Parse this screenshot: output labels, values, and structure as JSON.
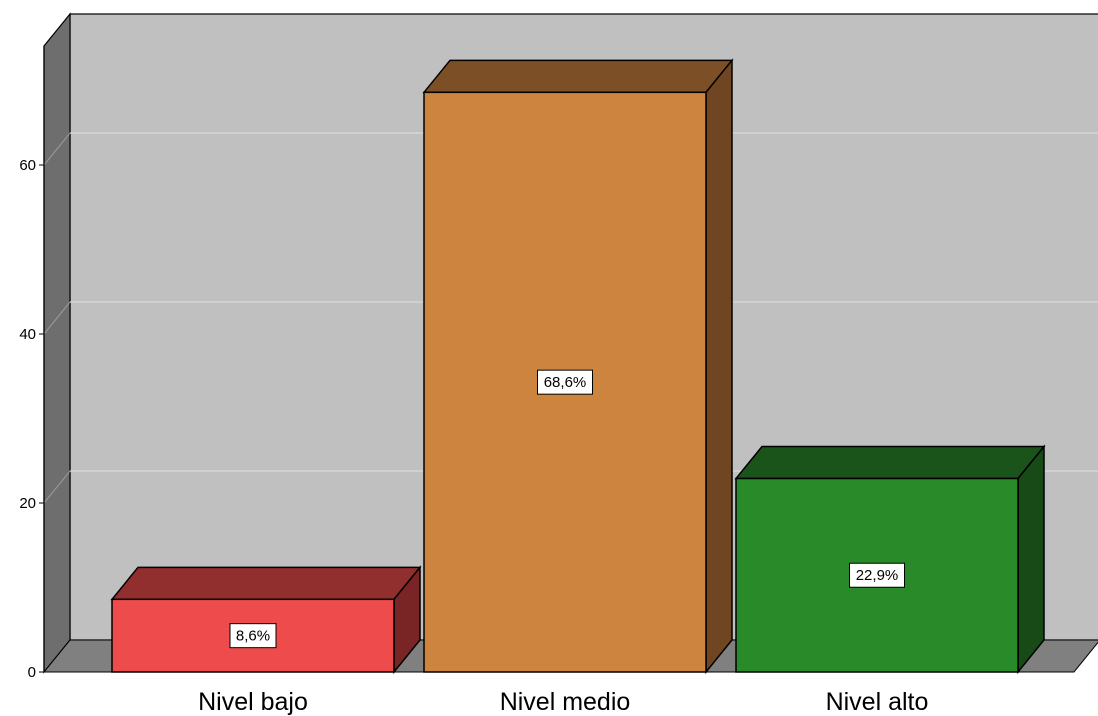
{
  "chart_data": {
    "type": "bar",
    "style": "3d",
    "categories": [
      "Nivel bajo",
      "Nivel medio",
      "Nivel alto"
    ],
    "values": [
      8.6,
      68.6,
      22.9
    ],
    "data_labels": [
      "8,6%",
      "68,6%",
      "22,9%"
    ],
    "colors": {
      "Nivel bajo": {
        "front": "#ee4c4c",
        "top": "#912e2e",
        "side": "#7a2525"
      },
      "Nivel medio": {
        "front": "#cc843f",
        "top": "#7d4f27",
        "side": "#6f4522"
      },
      "Nivel alto": {
        "front": "#298a29",
        "top": "#1b541b",
        "side": "#174a17"
      }
    },
    "yticks": [
      0,
      20,
      40,
      60
    ],
    "ylim": [
      0,
      75
    ],
    "grid": true,
    "plot_background": "#c0c0c0",
    "title": "",
    "xlabel": "",
    "ylabel": ""
  }
}
